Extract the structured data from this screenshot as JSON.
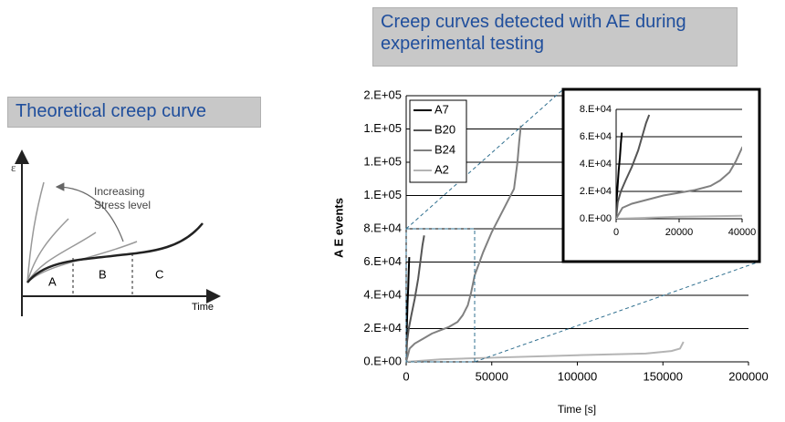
{
  "left_panel": {
    "title": "Theoretical creep curve",
    "diagram": {
      "y_label": "ε",
      "annotation": [
        "Increasing",
        "Stress level"
      ],
      "regions": [
        "A",
        "B",
        "C"
      ],
      "x_label": "Time"
    }
  },
  "chart_data": {
    "type": "line",
    "title": "Creep curves detected with AE during experimental testing",
    "x_label": "Time [s]",
    "y_label": "A E events",
    "xlim": [
      0,
      200000
    ],
    "xticks": [
      0,
      50000,
      100000,
      150000,
      200000
    ],
    "ylim": [
      0,
      160000
    ],
    "yticks": [
      {
        "value": 0,
        "label": "0.E+00"
      },
      {
        "value": 20000,
        "label": "2.E+04"
      },
      {
        "value": 40000,
        "label": "4.E+04"
      },
      {
        "value": 60000,
        "label": "6.E+04"
      },
      {
        "value": 80000,
        "label": "8.E+04"
      },
      {
        "value": 100000,
        "label": "1.E+05"
      },
      {
        "value": 120000,
        "label": "1.E+05"
      },
      {
        "value": 140000,
        "label": "1.E+05"
      },
      {
        "value": 160000,
        "label": "2.E+05"
      }
    ],
    "grid": true,
    "legend": "upper left",
    "series": [
      {
        "name": "A7",
        "color": "#000000",
        "x": [
          0,
          200,
          500,
          800,
          1200,
          1500,
          1800
        ],
        "values": [
          0,
          15000,
          25000,
          35000,
          45000,
          55000,
          63000
        ]
      },
      {
        "name": "B20",
        "color": "#555555",
        "x": [
          0,
          500,
          1500,
          3000,
          5000,
          7000,
          8500,
          9500,
          10500
        ],
        "values": [
          0,
          12000,
          20000,
          28000,
          38000,
          50000,
          62000,
          70000,
          76000
        ]
      },
      {
        "name": "B24",
        "color": "#808080",
        "x": [
          0,
          2000,
          5000,
          10000,
          15000,
          20000,
          25000,
          30000,
          33000,
          36000,
          38000,
          40000,
          45000,
          50000,
          55000,
          60000,
          63000,
          65000,
          66000,
          67000
        ],
        "values": [
          0,
          8000,
          11000,
          14000,
          17000,
          19000,
          21000,
          24000,
          28000,
          34000,
          42000,
          52000,
          66000,
          78000,
          88000,
          98000,
          104000,
          120000,
          132000,
          142000
        ]
      },
      {
        "name": "A2",
        "color": "#b4b4b4",
        "x": [
          0,
          20000,
          50000,
          100000,
          140000,
          155000,
          160000,
          162000
        ],
        "values": [
          0,
          1500,
          2500,
          4000,
          5000,
          6500,
          8000,
          12000
        ]
      }
    ],
    "inset": {
      "xlim": [
        0,
        40000
      ],
      "xticks": [
        0,
        20000,
        40000
      ],
      "ylim": [
        0,
        80000
      ],
      "yticks": [
        {
          "value": 0,
          "label": "0.E+00"
        },
        {
          "value": 20000,
          "label": "2.E+04"
        },
        {
          "value": 40000,
          "label": "4.E+04"
        },
        {
          "value": 60000,
          "label": "6.E+04"
        },
        {
          "value": 80000,
          "label": "8.E+04"
        }
      ]
    }
  }
}
